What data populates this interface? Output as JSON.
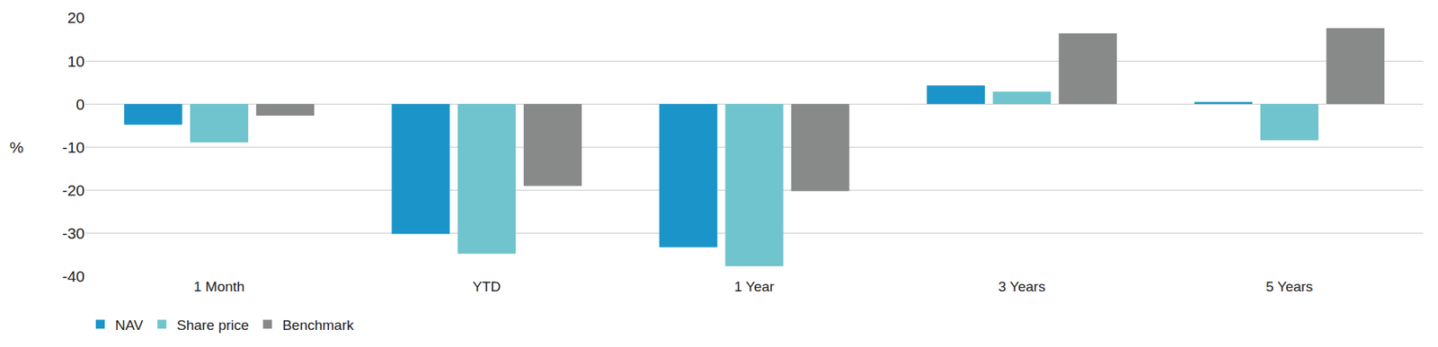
{
  "chart_data": {
    "type": "bar",
    "ylabel": "%",
    "categories": [
      "1 Month",
      "YTD",
      "1 Year",
      "3 Years",
      "5 Years"
    ],
    "series": [
      {
        "name": "NAV",
        "color": "#1b95c9",
        "values": [
          -4.8,
          -30.1,
          -33.2,
          4.3,
          0.5
        ]
      },
      {
        "name": "Share price",
        "color": "#6fc4ce",
        "values": [
          -8.9,
          -34.7,
          -37.6,
          2.9,
          -8.4
        ]
      },
      {
        "name": "Benchmark",
        "color": "#878a88",
        "values": [
          -2.7,
          -19.0,
          -20.2,
          16.4,
          17.6
        ]
      }
    ],
    "ylim": [
      -40,
      20
    ],
    "yticks": [
      -40,
      -30,
      -20,
      -10,
      0,
      10,
      20
    ],
    "grid": true,
    "legend": "bottom-left"
  }
}
